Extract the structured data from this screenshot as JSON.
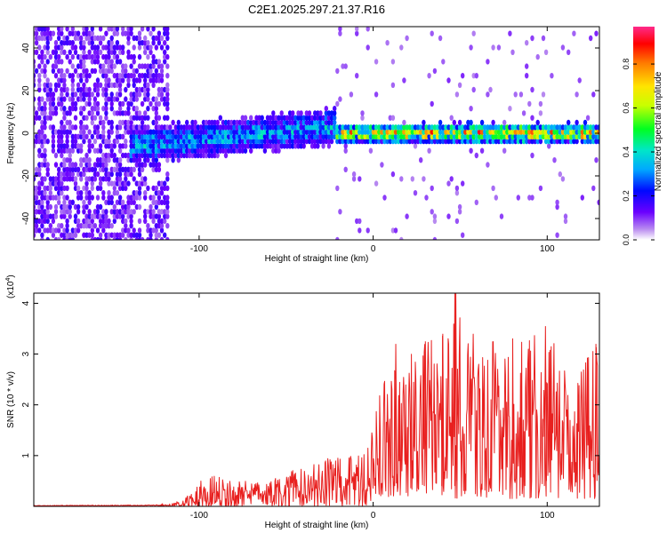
{
  "figure_title": "C2E1.2025.297.21.37.R16",
  "colors": {
    "snr_line": "#e8201f",
    "spectrogram_background": "#ffffff"
  },
  "chart_data": [
    {
      "type": "heatmap",
      "title": "C2E1.2025.297.21.37.R16",
      "xlabel": "Height of straight line (km)",
      "ylabel": "Frequency (Hz)",
      "xlim": [
        -195,
        130
      ],
      "ylim": [
        -50,
        50
      ],
      "xticks": [
        -100,
        0,
        100
      ],
      "yticks": [
        -40,
        -20,
        0,
        20,
        40
      ],
      "colorbar": {
        "label": "Normalized spectral amplitude",
        "range": [
          0,
          0.97
        ],
        "ticks": [
          "0.0",
          "0.2",
          "0.4",
          "0.6",
          "0.8"
        ],
        "tick_values": [
          0.0,
          0.2,
          0.4,
          0.6,
          0.8
        ],
        "colormap": "rainbow"
      },
      "features": [
        {
          "name": "noise",
          "x_range": [
            -195,
            -118
          ],
          "freq_range": [
            -50,
            50
          ],
          "amplitude": 0.1
        },
        {
          "name": "signal_band_low_altitude",
          "x_range": [
            -140,
            -22
          ],
          "freq_center_start": -6,
          "freq_center_end": 3,
          "half_width_hz": 5,
          "amplitude": 0.35
        },
        {
          "name": "signal_band_high_altitude",
          "x_range": [
            -22,
            130
          ],
          "freq_center": 0,
          "half_width_hz": 2.5,
          "amplitude": 0.85
        }
      ]
    },
    {
      "type": "line",
      "xlabel": "Height of straight line (km)",
      "ylabel": "SNR (10 * v/v)",
      "y_multiplier": "(x10",
      "y_multiplier_exp": "4",
      "y_multiplier_close": ")",
      "xlim": [
        -195,
        130
      ],
      "ylim": [
        0,
        4.2
      ],
      "xticks": [
        -100,
        0,
        100
      ],
      "yticks": [
        1,
        2,
        3,
        4
      ],
      "series": [
        {
          "name": "SNR",
          "envelope_x": [
            -195,
            -125,
            -110,
            -100,
            -90,
            -80,
            -60,
            -40,
            -20,
            -5,
            5,
            20,
            40,
            47,
            60,
            80,
            100,
            120,
            130
          ],
          "envelope_y": [
            0.02,
            0.03,
            0.12,
            0.5,
            0.65,
            0.5,
            0.5,
            0.8,
            1.0,
            1.1,
            2.4,
            3.0,
            3.4,
            4.2,
            3.2,
            3.3,
            3.4,
            2.8,
            3.2
          ],
          "spikes": [
            {
              "x": 47.5,
              "y": 4.2
            },
            {
              "x": 99,
              "y": 3.55
            },
            {
              "x": 40,
              "y": 3.4
            },
            {
              "x": 30,
              "y": 3.25
            },
            {
              "x": 13,
              "y": 3.2
            },
            {
              "x": 128,
              "y": 3.2
            }
          ]
        }
      ]
    }
  ]
}
